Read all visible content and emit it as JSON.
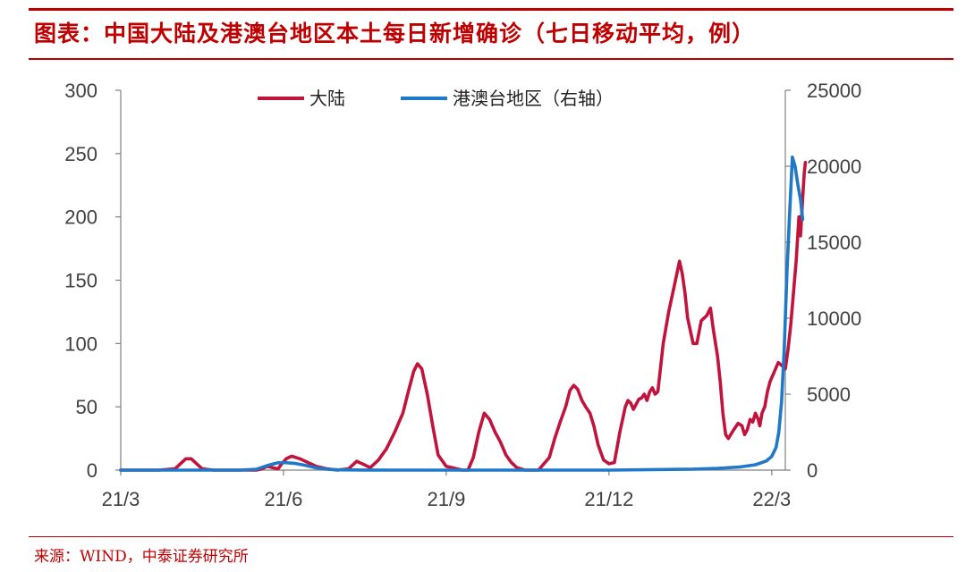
{
  "header": {
    "title": "图表：中国大陆及港澳台地区本土每日新增确诊（七日移动平均，例）"
  },
  "footer": {
    "source": "来源：WIND，中泰证券研究所"
  },
  "colors": {
    "accent": "#c00000",
    "series_mainland": "#c0143c",
    "series_hk_macau_tw": "#1f78c8",
    "axis": "#808080"
  },
  "chart_data": {
    "type": "line",
    "title": "中国大陆及港澳台地区本土每日新增确诊（七日移动平均，例）",
    "x_tick_labels": [
      "21/3",
      "21/6",
      "21/9",
      "21/12",
      "22/3"
    ],
    "x_tick_positions": [
      0,
      3,
      6,
      9,
      12
    ],
    "xlim": [
      0,
      12.25
    ],
    "y_left": {
      "ylim": [
        0,
        300
      ],
      "ticks": [
        0,
        50,
        100,
        150,
        200,
        250,
        300
      ]
    },
    "y_right": {
      "ylim": [
        0,
        25000
      ],
      "ticks": [
        0,
        5000,
        10000,
        15000,
        20000,
        25000
      ]
    },
    "grid": false,
    "legend_position": "top-center",
    "series": [
      {
        "name": "大陆",
        "axis": "left",
        "points": [
          [
            0,
            0
          ],
          [
            0.7,
            0
          ],
          [
            1.0,
            1
          ],
          [
            1.1,
            5
          ],
          [
            1.2,
            9
          ],
          [
            1.3,
            9
          ],
          [
            1.4,
            5
          ],
          [
            1.5,
            1
          ],
          [
            1.7,
            0
          ],
          [
            2.0,
            0
          ],
          [
            2.5,
            0
          ],
          [
            2.6,
            1
          ],
          [
            2.7,
            3
          ],
          [
            2.8,
            2
          ],
          [
            2.9,
            1
          ],
          [
            2.95,
            4
          ],
          [
            3.05,
            9
          ],
          [
            3.15,
            11
          ],
          [
            3.3,
            9
          ],
          [
            3.45,
            6
          ],
          [
            3.6,
            3
          ],
          [
            3.8,
            1
          ],
          [
            4.0,
            0
          ],
          [
            4.2,
            1
          ],
          [
            4.35,
            7
          ],
          [
            4.45,
            5
          ],
          [
            4.6,
            2
          ],
          [
            4.75,
            8
          ],
          [
            4.9,
            17
          ],
          [
            5.05,
            30
          ],
          [
            5.2,
            45
          ],
          [
            5.3,
            62
          ],
          [
            5.4,
            78
          ],
          [
            5.47,
            84
          ],
          [
            5.55,
            80
          ],
          [
            5.65,
            60
          ],
          [
            5.75,
            35
          ],
          [
            5.85,
            12
          ],
          [
            6.0,
            3
          ],
          [
            6.2,
            1
          ],
          [
            6.3,
            0
          ],
          [
            6.4,
            0
          ],
          [
            6.5,
            10
          ],
          [
            6.6,
            30
          ],
          [
            6.7,
            45
          ],
          [
            6.8,
            40
          ],
          [
            6.9,
            30
          ],
          [
            7.0,
            22
          ],
          [
            7.1,
            12
          ],
          [
            7.2,
            6
          ],
          [
            7.3,
            2
          ],
          [
            7.45,
            0
          ],
          [
            7.7,
            0
          ],
          [
            7.9,
            10
          ],
          [
            8.0,
            25
          ],
          [
            8.1,
            38
          ],
          [
            8.2,
            50
          ],
          [
            8.28,
            63
          ],
          [
            8.35,
            67
          ],
          [
            8.42,
            64
          ],
          [
            8.5,
            55
          ],
          [
            8.57,
            50
          ],
          [
            8.65,
            45
          ],
          [
            8.72,
            35
          ],
          [
            8.8,
            20
          ],
          [
            8.9,
            8
          ],
          [
            9.0,
            5
          ],
          [
            9.1,
            6
          ],
          [
            9.2,
            30
          ],
          [
            9.3,
            50
          ],
          [
            9.35,
            55
          ],
          [
            9.4,
            53
          ],
          [
            9.45,
            48
          ],
          [
            9.5,
            52
          ],
          [
            9.55,
            56
          ],
          [
            9.6,
            57
          ],
          [
            9.65,
            60
          ],
          [
            9.7,
            55
          ],
          [
            9.75,
            62
          ],
          [
            9.8,
            65
          ],
          [
            9.85,
            60
          ],
          [
            9.9,
            62
          ],
          [
            10.0,
            100
          ],
          [
            10.1,
            125
          ],
          [
            10.2,
            145
          ],
          [
            10.3,
            165
          ],
          [
            10.35,
            155
          ],
          [
            10.4,
            140
          ],
          [
            10.45,
            120
          ],
          [
            10.55,
            100
          ],
          [
            10.62,
            100
          ],
          [
            10.7,
            118
          ],
          [
            10.8,
            122
          ],
          [
            10.87,
            128
          ],
          [
            10.92,
            112
          ],
          [
            11.0,
            90
          ],
          [
            11.05,
            70
          ],
          [
            11.1,
            45
          ],
          [
            11.15,
            28
          ],
          [
            11.2,
            25
          ],
          [
            11.3,
            32
          ],
          [
            11.38,
            37
          ],
          [
            11.45,
            35
          ],
          [
            11.5,
            28
          ],
          [
            11.55,
            32
          ],
          [
            11.6,
            40
          ],
          [
            11.65,
            38
          ],
          [
            11.7,
            45
          ],
          [
            11.75,
            40
          ],
          [
            11.78,
            35
          ],
          [
            11.82,
            45
          ],
          [
            11.87,
            50
          ],
          [
            11.92,
            62
          ],
          [
            11.97,
            70
          ],
          [
            12.02,
            75
          ],
          [
            12.07,
            80
          ],
          [
            12.12,
            85
          ],
          [
            12.2,
            82
          ],
          [
            12.25,
            80
          ],
          [
            12.3,
            95
          ],
          [
            12.35,
            115
          ],
          [
            12.4,
            140
          ],
          [
            12.45,
            165
          ],
          [
            12.5,
            200
          ],
          [
            12.53,
            185
          ],
          [
            12.57,
            215
          ],
          [
            12.6,
            235
          ],
          [
            12.62,
            243
          ]
        ]
      },
      {
        "name": "港澳台地区（右轴）",
        "axis": "right",
        "points": [
          [
            0,
            0
          ],
          [
            2.2,
            0
          ],
          [
            2.5,
            50
          ],
          [
            2.7,
            300
          ],
          [
            2.9,
            480
          ],
          [
            3.0,
            500
          ],
          [
            3.2,
            450
          ],
          [
            3.4,
            320
          ],
          [
            3.6,
            150
          ],
          [
            3.8,
            60
          ],
          [
            4.0,
            20
          ],
          [
            4.5,
            5
          ],
          [
            5.0,
            0
          ],
          [
            9.0,
            0
          ],
          [
            10.5,
            60
          ],
          [
            11.0,
            120
          ],
          [
            11.4,
            200
          ],
          [
            11.7,
            350
          ],
          [
            11.9,
            600
          ],
          [
            12.0,
            900
          ],
          [
            12.08,
            1500
          ],
          [
            12.13,
            2500
          ],
          [
            12.18,
            4500
          ],
          [
            12.23,
            8000
          ],
          [
            12.28,
            13000
          ],
          [
            12.33,
            17000
          ],
          [
            12.38,
            20600
          ],
          [
            12.43,
            20000
          ],
          [
            12.48,
            18800
          ],
          [
            12.53,
            17800
          ],
          [
            12.57,
            16500
          ]
        ]
      }
    ]
  }
}
